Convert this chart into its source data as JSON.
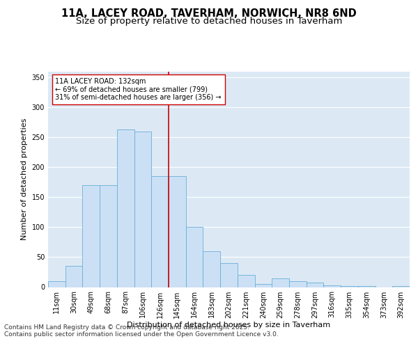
{
  "title_line1": "11A, LACEY ROAD, TAVERHAM, NORWICH, NR8 6ND",
  "title_line2": "Size of property relative to detached houses in Taverham",
  "xlabel": "Distribution of detached houses by size in Taverham",
  "ylabel": "Number of detached properties",
  "bin_labels": [
    "11sqm",
    "30sqm",
    "49sqm",
    "68sqm",
    "87sqm",
    "106sqm",
    "126sqm",
    "145sqm",
    "164sqm",
    "183sqm",
    "202sqm",
    "221sqm",
    "240sqm",
    "259sqm",
    "278sqm",
    "297sqm",
    "316sqm",
    "335sqm",
    "354sqm",
    "373sqm",
    "392sqm"
  ],
  "bar_heights": [
    10,
    35,
    170,
    170,
    263,
    260,
    185,
    185,
    100,
    60,
    40,
    20,
    5,
    15,
    10,
    8,
    3,
    2,
    2,
    0,
    2
  ],
  "bar_color": "#cce0f5",
  "bar_edge_color": "#6aaed6",
  "vline_color": "#cc0000",
  "annotation_text": "11A LACEY ROAD: 132sqm\n← 69% of detached houses are smaller (799)\n31% of semi-detached houses are larger (356) →",
  "annotation_box_color": "#ffffff",
  "annotation_box_edge": "#cc0000",
  "ylim": [
    0,
    360
  ],
  "yticks": [
    0,
    50,
    100,
    150,
    200,
    250,
    300,
    350
  ],
  "grid_color": "#ffffff",
  "bg_color": "#dce9f5",
  "footer_text": "Contains HM Land Registry data © Crown copyright and database right 2025.\nContains public sector information licensed under the Open Government Licence v3.0.",
  "title_fontsize": 10.5,
  "subtitle_fontsize": 9.5,
  "axis_label_fontsize": 8,
  "tick_fontsize": 7,
  "annot_fontsize": 7,
  "footer_fontsize": 6.5
}
